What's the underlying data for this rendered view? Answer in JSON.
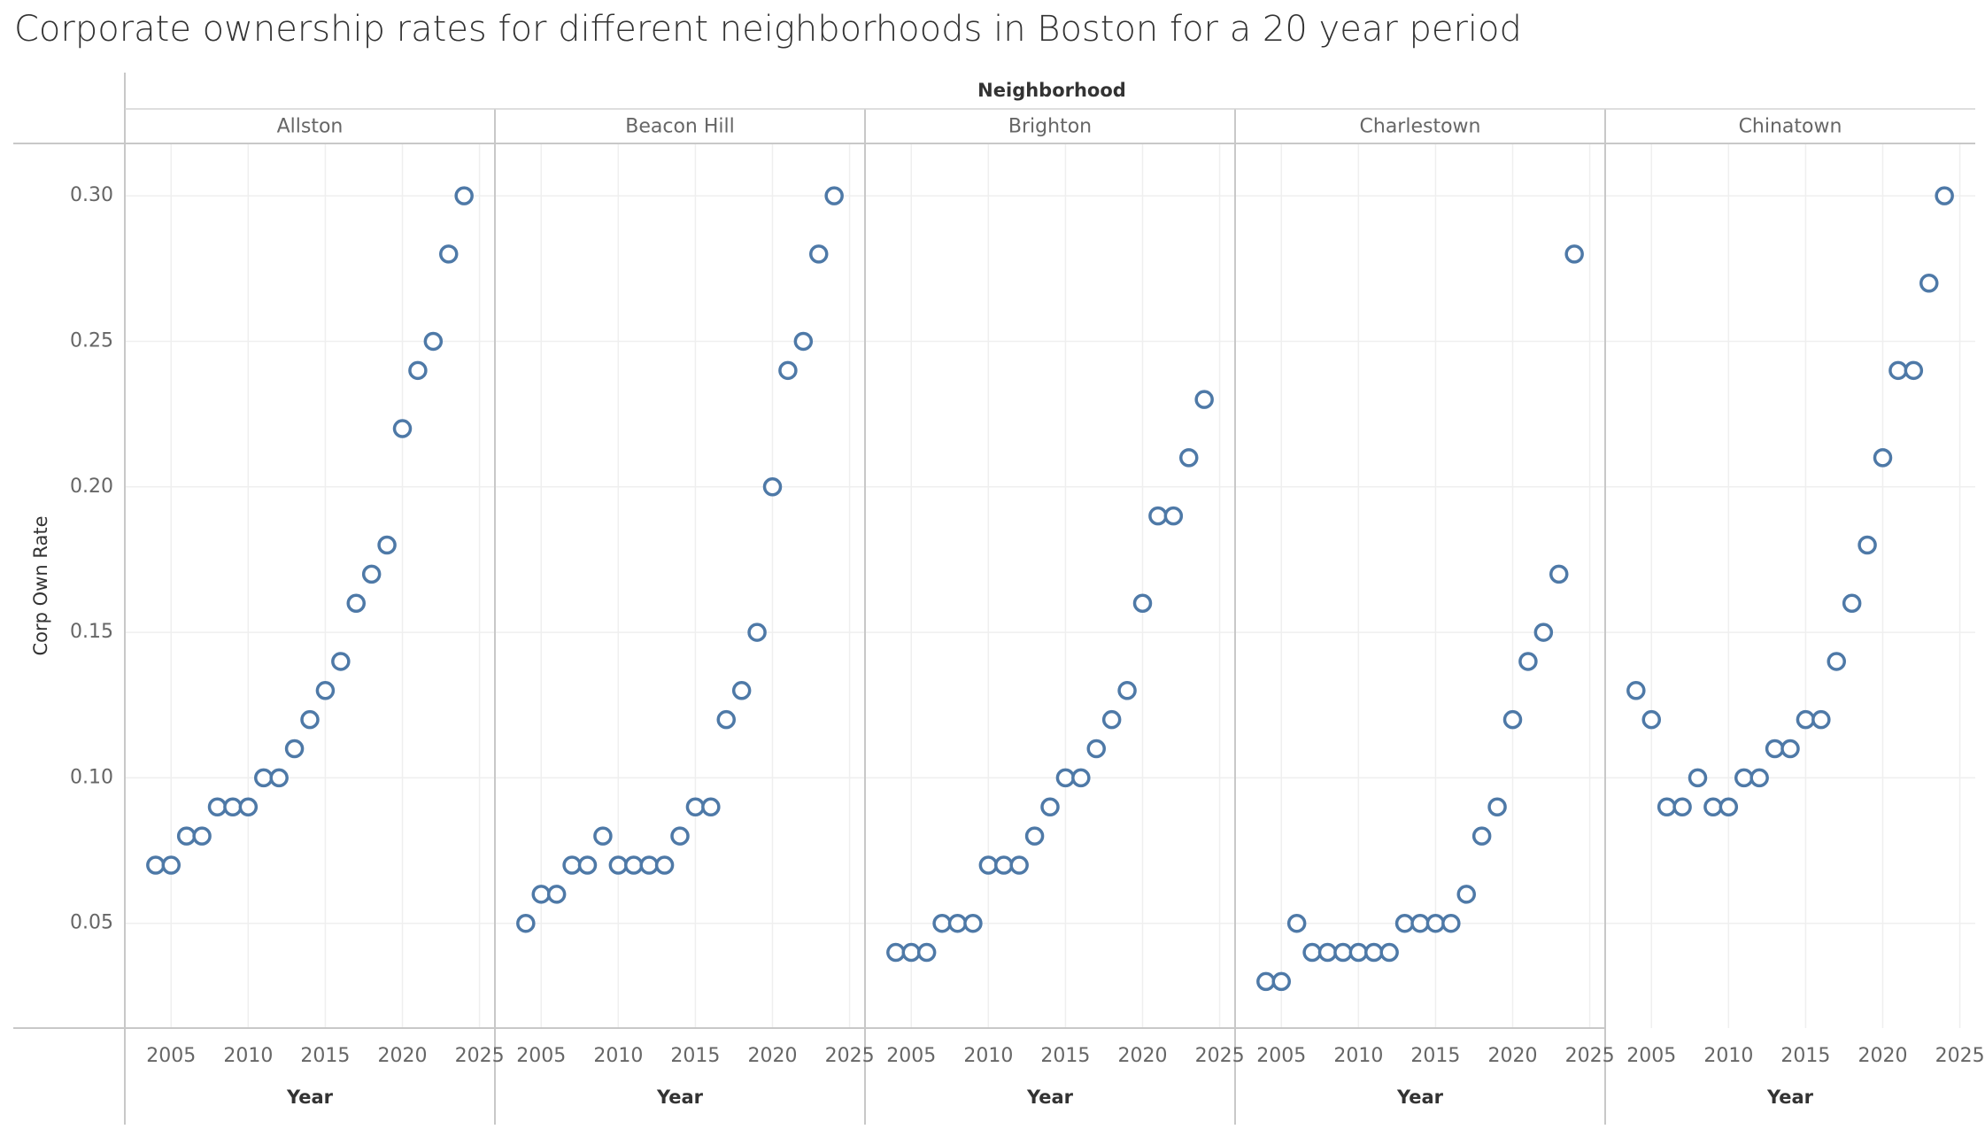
{
  "title": "Corporate ownership rates for different neighborhoods in Boston for a 20 year period",
  "chart_data": {
    "type": "scatter",
    "title": "Corporate ownership rates for different neighborhoods in Boston for a 20 year period",
    "facet_header": "Neighborhood",
    "xlabel": "Year",
    "ylabel": "Corp Own Rate",
    "x_ticks": [
      2005,
      2010,
      2015,
      2020,
      2025
    ],
    "y_ticks": [
      0.05,
      0.1,
      0.15,
      0.2,
      0.25,
      0.3
    ],
    "x_tick_labels": [
      "2005",
      "2010",
      "2015",
      "2020",
      "2025"
    ],
    "y_tick_labels": [
      "0.05",
      "0.10",
      "0.15",
      "0.20",
      "0.25",
      "0.30"
    ],
    "xlim": [
      2002,
      2026
    ],
    "ylim": [
      0.014,
      0.318
    ],
    "grid": true,
    "marker": "open-circle",
    "marker_color": "#4e79a7",
    "x": [
      2004,
      2005,
      2006,
      2007,
      2008,
      2009,
      2010,
      2011,
      2012,
      2013,
      2014,
      2015,
      2016,
      2017,
      2018,
      2019,
      2020,
      2021,
      2022,
      2023,
      2024
    ],
    "series": [
      {
        "name": "Allston",
        "values": [
          0.07,
          0.07,
          0.08,
          0.08,
          0.09,
          0.09,
          0.09,
          0.1,
          0.1,
          0.11,
          0.12,
          0.13,
          0.14,
          0.16,
          0.17,
          0.18,
          0.22,
          0.24,
          0.25,
          0.28,
          0.3
        ]
      },
      {
        "name": "Beacon Hill",
        "values": [
          0.05,
          0.06,
          0.06,
          0.07,
          0.07,
          0.08,
          0.07,
          0.07,
          0.07,
          0.07,
          0.08,
          0.09,
          0.09,
          0.12,
          0.13,
          0.15,
          0.2,
          0.24,
          0.25,
          0.28,
          0.3
        ]
      },
      {
        "name": "Brighton",
        "values": [
          0.04,
          0.04,
          0.04,
          0.05,
          0.05,
          0.05,
          0.07,
          0.07,
          0.07,
          0.08,
          0.09,
          0.1,
          0.1,
          0.11,
          0.12,
          0.13,
          0.16,
          0.19,
          0.19,
          0.21,
          0.23
        ]
      },
      {
        "name": "Charlestown",
        "values": [
          0.03,
          0.03,
          0.05,
          0.04,
          0.04,
          0.04,
          0.04,
          0.04,
          0.04,
          0.05,
          0.05,
          0.05,
          0.05,
          0.06,
          0.08,
          0.09,
          0.12,
          0.14,
          0.15,
          0.17,
          0.28
        ]
      },
      {
        "name": "Chinatown",
        "values": [
          0.13,
          0.12,
          0.09,
          0.09,
          0.1,
          0.09,
          0.09,
          0.1,
          0.1,
          0.11,
          0.11,
          0.12,
          0.12,
          0.14,
          0.16,
          0.18,
          0.21,
          0.24,
          0.24,
          0.27,
          0.3
        ]
      }
    ]
  }
}
